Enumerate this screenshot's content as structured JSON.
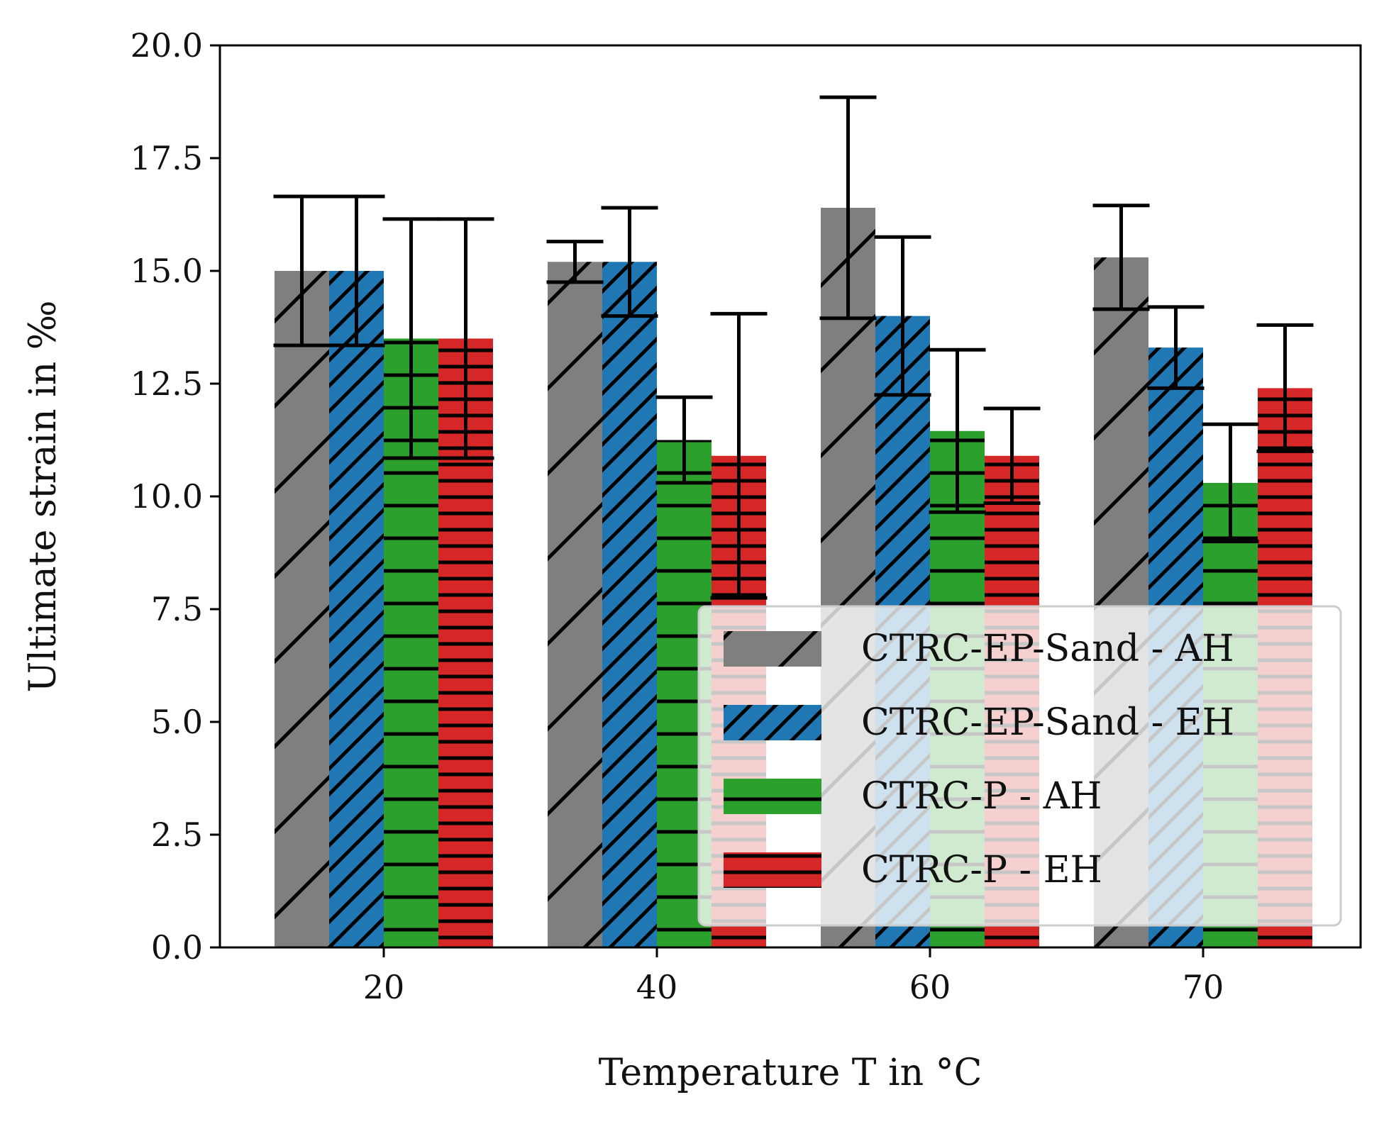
{
  "chart_data": {
    "type": "bar",
    "title": "",
    "xlabel": "Temperature T in °C",
    "ylabel": "Ultimate strain in ‰",
    "categories": [
      "20",
      "40",
      "60",
      "70"
    ],
    "ylim": [
      0,
      20
    ],
    "yticks": [
      "0.0",
      "2.5",
      "5.0",
      "7.5",
      "10.0",
      "12.5",
      "15.0",
      "17.5",
      "20.0"
    ],
    "grid": false,
    "legend_position": "lower-right",
    "series": [
      {
        "name": "CTRC-EP-Sand - AH",
        "color": "#7f7f7f",
        "hatch": "sparse-diagonal",
        "values": [
          15.0,
          15.2,
          16.4,
          15.3
        ],
        "errors": [
          1.65,
          0.45,
          2.45,
          1.15
        ]
      },
      {
        "name": "CTRC-EP-Sand - EH",
        "color": "#1f77b4",
        "hatch": "dense-diagonal",
        "values": [
          15.0,
          15.2,
          14.0,
          13.3
        ],
        "errors": [
          1.65,
          1.2,
          1.75,
          0.9
        ]
      },
      {
        "name": "CTRC-P - AH",
        "color": "#2ca02c",
        "hatch": "horizontal",
        "values": [
          13.5,
          11.25,
          11.45,
          10.3
        ],
        "errors": [
          2.65,
          0.95,
          1.8,
          1.3
        ]
      },
      {
        "name": "CTRC-P - EH",
        "color": "#d62728",
        "hatch": "dense-horizontal",
        "values": [
          13.5,
          10.9,
          10.9,
          12.4
        ],
        "errors": [
          2.65,
          3.15,
          1.05,
          1.4
        ]
      }
    ]
  }
}
